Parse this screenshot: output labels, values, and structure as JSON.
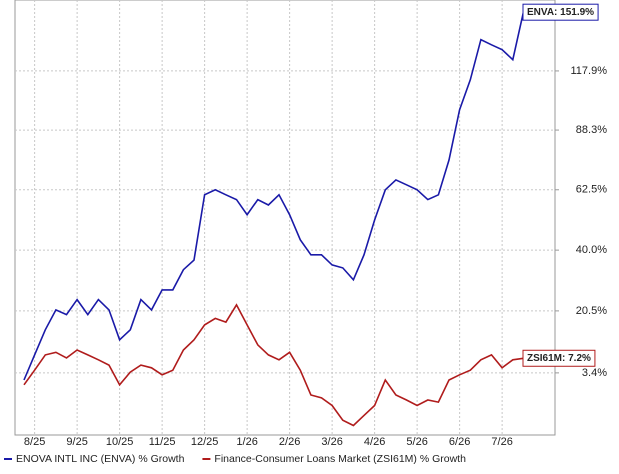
{
  "chart_data": {
    "type": "line",
    "categories": [
      null,
      "8/25",
      null,
      null,
      null,
      "9/25",
      null,
      null,
      null,
      "10/25",
      null,
      null,
      null,
      "11/25",
      null,
      null,
      null,
      "12/25",
      null,
      null,
      null,
      "1/26",
      null,
      null,
      null,
      "2/26",
      null,
      null,
      null,
      "3/26",
      null,
      null,
      null,
      "4/26",
      null,
      null,
      null,
      "5/26",
      null,
      null,
      null,
      "6/26",
      null,
      null,
      null,
      "7/26",
      null,
      null
    ],
    "series": [
      {
        "name": "ENOVA INTL INC (ENVA) % Growth",
        "color": "#1a1aa8",
        "end_label": "ENVA: 151.9%",
        "values": [
          1.6,
          8.1,
          15.0,
          20.8,
          19.4,
          23.9,
          19.4,
          23.9,
          20.8,
          12.2,
          15.0,
          23.9,
          20.8,
          26.9,
          26.9,
          33.4,
          36.6,
          60.5,
          62.5,
          60.5,
          58.6,
          52.8,
          58.6,
          56.5,
          60.5,
          52.8,
          43.6,
          38.4,
          38.4,
          35.0,
          34.0,
          30.1,
          38.4,
          50.8,
          62.5,
          66.5,
          64.5,
          62.5,
          58.6,
          60.5,
          74.9,
          98.0,
          113.2,
          135.4,
          132.4,
          129.6,
          124.0,
          151.9
        ]
      },
      {
        "name": "Finance-Consumer Loans Market (ZSI61M) % Growth",
        "color": "#b01c1c",
        "end_label": "ZSI61M: 7.2%",
        "values": [
          0.4,
          4.1,
          8.1,
          8.8,
          7.3,
          9.4,
          8.1,
          6.8,
          5.4,
          0.4,
          3.6,
          5.4,
          4.7,
          2.9,
          4.1,
          9.4,
          12.2,
          16.4,
          18.3,
          17.2,
          22.3,
          16.4,
          10.8,
          8.1,
          6.8,
          8.8,
          4.1,
          -2.1,
          -2.8,
          -4.6,
          -8.0,
          -9.2,
          -6.9,
          -4.6,
          1.6,
          -2.1,
          -3.3,
          -4.6,
          -3.3,
          -3.8,
          1.6,
          2.9,
          4.1,
          6.8,
          8.1,
          4.7,
          6.8,
          7.2
        ]
      }
    ],
    "ylim": [
      -11.3,
      159.6
    ],
    "log_scale": true,
    "yticks": [
      {
        "value": 3.4,
        "label": "3.4%"
      },
      {
        "value": 20.5,
        "label": "20.5%"
      },
      {
        "value": 40.0,
        "label": "40.0%"
      },
      {
        "value": 62.5,
        "label": "62.5%"
      },
      {
        "value": 88.3,
        "label": "88.3%"
      },
      {
        "value": 117.9,
        "label": "117.9%"
      }
    ],
    "grid": true
  }
}
